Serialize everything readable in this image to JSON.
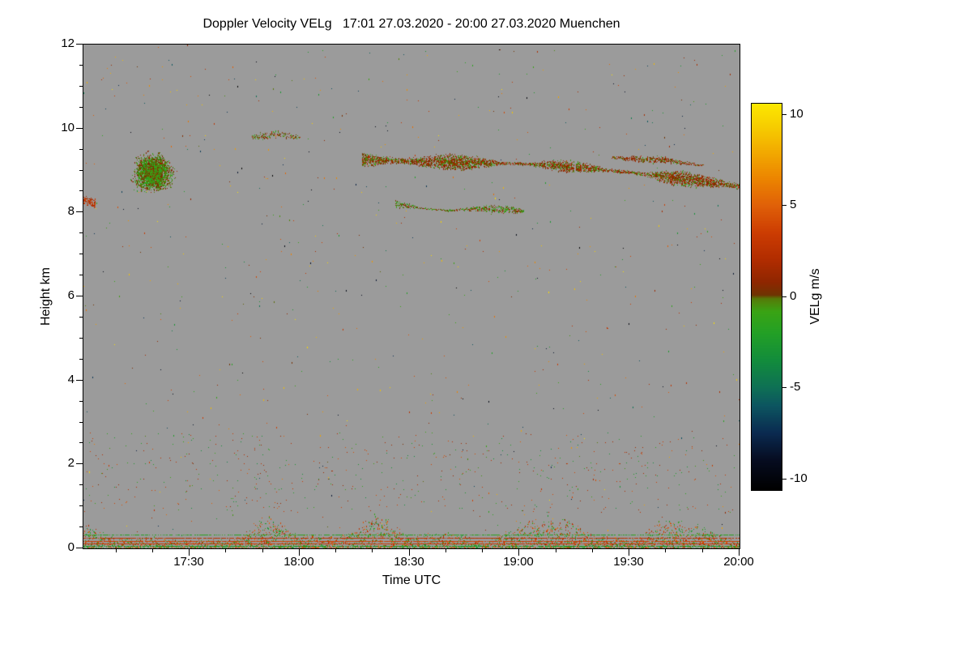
{
  "chart_data": {
    "type": "heatmap",
    "title": "Doppler Velocity VELg   17:01 27.03.2020 - 20:00 27.03.2020 Muenchen",
    "location": "Muenchen",
    "xlabel": "Time UTC",
    "ylabel": "Height km",
    "x_axis": {
      "start": "17:01",
      "end": "20:00",
      "tick_labels": [
        "17:30",
        "18:00",
        "18:30",
        "19:00",
        "19:30",
        "20:00"
      ],
      "minor_tick_minutes": 10
    },
    "y_axis": {
      "min": 0,
      "max": 12,
      "tick_labels": [
        0,
        2,
        4,
        6,
        8,
        10,
        12
      ],
      "minor_tick_step": 0.5
    },
    "colorbar": {
      "label": "VELg m/s",
      "min": -10.6,
      "max": 10.6,
      "tick_labels": [
        10,
        5,
        0,
        -5,
        -10
      ],
      "stops": [
        [
          -10.6,
          "#000000"
        ],
        [
          -9.0,
          "#060c20"
        ],
        [
          -7.5,
          "#0a2a50"
        ],
        [
          -6.0,
          "#0c5560"
        ],
        [
          -5.0,
          "#0e7055"
        ],
        [
          -3.5,
          "#128c3c"
        ],
        [
          -2.0,
          "#23a026"
        ],
        [
          -0.8,
          "#3aa314"
        ],
        [
          -0.1,
          "#567a08"
        ],
        [
          0.1,
          "#6e3402"
        ],
        [
          0.8,
          "#8f2600"
        ],
        [
          2.0,
          "#b02c00"
        ],
        [
          3.5,
          "#cc3c02"
        ],
        [
          5.0,
          "#e06008"
        ],
        [
          6.5,
          "#ec8500"
        ],
        [
          8.0,
          "#f2ab00"
        ],
        [
          9.3,
          "#f6cc00"
        ],
        [
          10.6,
          "#fce800"
        ]
      ]
    },
    "no_data_color": "#9b9b9b",
    "features": [
      {
        "name": "left-edge-patch",
        "type": "band",
        "path": [
          [
            "17:01",
            8.3
          ],
          [
            "17:04",
            8.22
          ]
        ],
        "thickness_km": 0.22,
        "density": 0.7,
        "v_mean": 2.5,
        "v_spread": 2.2
      },
      {
        "name": "cumulus-blob",
        "type": "blob",
        "t_center": "17:20",
        "h_center": 8.95,
        "t_radius_min": 6.5,
        "h_radius_km": 0.55,
        "points": 3000,
        "v_mean": -0.4,
        "v_spread": 2.2
      },
      {
        "name": "high-thin-patch",
        "type": "band",
        "path": [
          [
            "17:47",
            9.78
          ],
          [
            "17:54",
            9.88
          ],
          [
            "18:00",
            9.78
          ]
        ],
        "thickness_km": 0.18,
        "density": 0.35,
        "v_mean": 0.3,
        "v_spread": 2.4
      },
      {
        "name": "upper-cloud-streak",
        "type": "band",
        "path": [
          [
            "18:17",
            9.25
          ],
          [
            "18:40",
            9.2
          ],
          [
            "19:05",
            9.15
          ],
          [
            "19:20",
            9.05
          ],
          [
            "19:35",
            8.9
          ],
          [
            "19:50",
            8.75
          ],
          [
            "20:00",
            8.62
          ]
        ],
        "thickness_km": 0.28,
        "density": 0.85,
        "v_mean": 0.5,
        "v_spread": 2.5
      },
      {
        "name": "upper-streak-fragment",
        "type": "band",
        "path": [
          [
            "19:25",
            9.3
          ],
          [
            "19:40",
            9.25
          ],
          [
            "19:50",
            9.12
          ]
        ],
        "thickness_km": 0.12,
        "density": 0.55,
        "v_mean": 0.7,
        "v_spread": 2.0
      },
      {
        "name": "mid-cloud-streak",
        "type": "band",
        "path": [
          [
            "18:26",
            8.22
          ],
          [
            "18:33",
            8.1
          ],
          [
            "18:40",
            8.05
          ],
          [
            "18:50",
            8.1
          ],
          [
            "19:01",
            8.04
          ]
        ],
        "thickness_km": 0.16,
        "density": 0.65,
        "v_mean": -0.2,
        "v_spread": 2.3
      }
    ],
    "noise": {
      "seed": 1337,
      "sparse_count": 760,
      "lower_extra_count": 520,
      "surface_max_height_km": 0.85,
      "stripes": [
        {
          "h": 0.1,
          "v": 3.0,
          "gap": 0.06
        },
        {
          "h": 0.16,
          "v": 3.5,
          "gap": 0.08
        },
        {
          "h": 0.24,
          "v": 2.5,
          "gap": 0.12
        },
        {
          "h": 0.32,
          "v": -1.6,
          "gap": 0.35
        },
        {
          "h": 0.05,
          "v": -2.2,
          "gap": 0.25
        }
      ]
    }
  }
}
